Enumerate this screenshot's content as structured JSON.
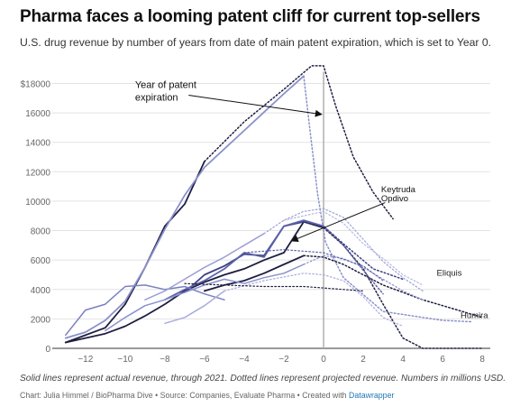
{
  "title": "Pharma faces a looming patent cliff for current top-sellers",
  "subtitle": "U.S. drug revenue by number of years from date of main patent expiration, which is set to Year 0.",
  "footer": {
    "note": "Solid lines represent actual revenue, through 2021. Dotted lines represent projected revenue. Numbers in millions USD.",
    "credit": "Chart: Julia Himmel / BioPharma Dive • Source: Companies, Evaluate Pharma • Created with ",
    "credit_link": "Datawrapper"
  },
  "chart_data": {
    "type": "line",
    "title": "Pharma faces a looming patent cliff for current top-sellers",
    "xlabel": "",
    "ylabel": "",
    "xlim": [
      -13.4,
      8.4
    ],
    "ylim": [
      0,
      19500
    ],
    "x_ticks": [
      -12,
      -10,
      -8,
      -6,
      -4,
      -2,
      0,
      2,
      4,
      6,
      8
    ],
    "x_tick_labels": [
      "−12",
      "−10",
      "−8",
      "−6",
      "−4",
      "−2",
      "0",
      "2",
      "4",
      "6",
      "8"
    ],
    "y_ticks": [
      0,
      2000,
      4000,
      6000,
      8000,
      10000,
      12000,
      14000,
      16000,
      18000
    ],
    "y_tick_labels": [
      "0",
      "2000",
      "4000",
      "6000",
      "8000",
      "10000",
      "12000",
      "14000",
      "16000",
      "$18000"
    ],
    "grid": true,
    "legend": "none",
    "expiration_line": {
      "x": 0,
      "color": "#b5b5b5"
    },
    "annotations": [
      {
        "text": "Year of patent expiration",
        "lines": [
          "Year of patent",
          "expiration"
        ],
        "text_at": [
          -9.5,
          17700
        ],
        "arrow_from": [
          -6.8,
          17200
        ],
        "arrow_to": [
          -0.1,
          15900
        ]
      },
      {
        "text": "Keytruda",
        "lines": [
          "Keytruda"
        ],
        "text_at": [
          2.9,
          10600
        ],
        "arrow_from": null,
        "arrow_to": null
      },
      {
        "text": "Opdivo",
        "lines": [
          "Opdivo"
        ],
        "text_at": [
          2.9,
          10000
        ],
        "arrow_from": [
          3.1,
          9900
        ],
        "arrow_to": [
          -1.6,
          7300
        ]
      }
    ],
    "series": [
      {
        "color": "#1e1e40",
        "width": 1.5,
        "actual": [
          [
            -13,
            400
          ],
          [
            -11,
            1400
          ],
          [
            -10,
            3000
          ],
          [
            -9,
            5500
          ],
          [
            -8,
            8300
          ],
          [
            -7,
            9800
          ],
          [
            -6,
            12700
          ]
        ],
        "projected": [
          [
            -6,
            12700
          ],
          [
            -4,
            15400
          ],
          [
            -2,
            17600
          ],
          [
            -0.6,
            19200
          ],
          [
            0,
            19200
          ],
          [
            0.6,
            16500
          ],
          [
            1.5,
            13000
          ],
          [
            2.5,
            10600
          ],
          [
            3.5,
            8800
          ]
        ]
      },
      {
        "color": "#8a90cc",
        "width": 1.5,
        "actual": [
          [
            -13,
            700
          ],
          [
            -12,
            1100
          ],
          [
            -11,
            1900
          ],
          [
            -10,
            3200
          ],
          [
            -9,
            5500
          ],
          [
            -8,
            8100
          ],
          [
            -7,
            10400
          ],
          [
            -6,
            12300
          ],
          [
            -4,
            14800
          ],
          [
            -2,
            17300
          ],
          [
            -1,
            18500
          ]
        ],
        "projected": [
          [
            -1,
            18500
          ],
          [
            -0.7,
            15000
          ],
          [
            -0.3,
            10500
          ],
          [
            0.1,
            7200
          ],
          [
            1,
            4800
          ],
          [
            3,
            2500
          ],
          [
            6,
            1900
          ],
          [
            7.5,
            1800
          ]
        ]
      },
      {
        "color": "#1e1e40",
        "width": 1.5,
        "actual": [
          [
            -13,
            400
          ],
          [
            -12,
            700
          ],
          [
            -11,
            1000
          ],
          [
            -10,
            1500
          ],
          [
            -9,
            2200
          ],
          [
            -8,
            3000
          ],
          [
            -7,
            3900
          ],
          [
            -6,
            4500
          ],
          [
            -5,
            5000
          ],
          [
            -4,
            5400
          ],
          [
            -3,
            6000
          ],
          [
            -2,
            6500
          ],
          [
            -1,
            8600
          ],
          [
            0,
            8200
          ]
        ],
        "projected": [
          [
            0,
            8200
          ],
          [
            1,
            7000
          ],
          [
            2,
            5400
          ],
          [
            3,
            3000
          ],
          [
            4,
            700
          ],
          [
            5,
            0
          ],
          [
            8,
            0
          ]
        ]
      },
      {
        "color": "#3c3f86",
        "width": 1.5,
        "actual": [
          [
            -7,
            3800
          ],
          [
            -6,
            5000
          ],
          [
            -5,
            5600
          ],
          [
            -4,
            6400
          ],
          [
            -3,
            6300
          ],
          [
            -2,
            8300
          ],
          [
            -1,
            8600
          ]
        ],
        "projected": [
          [
            -1,
            8600
          ],
          [
            0,
            8300
          ],
          [
            1,
            7100
          ],
          [
            2.5,
            5400
          ],
          [
            4,
            4700
          ]
        ]
      },
      {
        "color": "#1e1e40",
        "width": 1.5,
        "actual": [
          [
            -6,
            3900
          ],
          [
            -5,
            4300
          ],
          [
            -4,
            4600
          ],
          [
            -3,
            5100
          ],
          [
            -2,
            5700
          ],
          [
            -1,
            6300
          ]
        ],
        "projected": [
          [
            -1,
            6300
          ],
          [
            0,
            6200
          ],
          [
            1,
            5700
          ],
          [
            2,
            5000
          ],
          [
            3,
            4300
          ],
          [
            4,
            3800
          ],
          [
            5,
            3300
          ],
          [
            6,
            2900
          ],
          [
            7,
            2500
          ],
          [
            8,
            2100
          ]
        ]
      },
      {
        "color": "#5c63a8",
        "width": 1.5,
        "actual": [
          [
            -8,
            3300
          ],
          [
            -7,
            4000
          ],
          [
            -6,
            4600
          ],
          [
            -5,
            5400
          ],
          [
            -4,
            6500
          ],
          [
            -3,
            6200
          ],
          [
            -2,
            8300
          ],
          [
            -1,
            8700
          ],
          [
            0,
            8300
          ]
        ],
        "projected": [
          [
            0,
            8300
          ],
          [
            1,
            7000
          ],
          [
            2,
            5300
          ],
          [
            3,
            3700
          ]
        ]
      },
      {
        "color": "#7a80c0",
        "width": 1.2,
        "actual": [
          [
            -13,
            900
          ],
          [
            -12,
            2600
          ],
          [
            -11,
            3000
          ],
          [
            -10,
            4200
          ],
          [
            -9,
            4300
          ],
          [
            -8,
            4000
          ],
          [
            -7,
            4200
          ],
          [
            -6,
            3700
          ],
          [
            -5,
            3300
          ]
        ],
        "projected": []
      },
      {
        "color": "#8a90cc",
        "width": 1.2,
        "actual": [
          [
            -11,
            1200
          ],
          [
            -10,
            2100
          ],
          [
            -9,
            2900
          ],
          [
            -8,
            3300
          ],
          [
            -7,
            3800
          ],
          [
            -6,
            4300
          ],
          [
            -5,
            4700
          ],
          [
            -4,
            4400
          ],
          [
            -3,
            4800
          ],
          [
            -2,
            5100
          ],
          [
            -1,
            5700
          ]
        ],
        "projected": [
          [
            -1,
            5700
          ],
          [
            0,
            6300
          ],
          [
            1,
            6100
          ],
          [
            2,
            5500
          ],
          [
            3,
            4700
          ],
          [
            4,
            3900
          ],
          [
            5,
            3300
          ]
        ]
      },
      {
        "color": "#a8acdc",
        "width": 1.2,
        "actual": [
          [
            -8,
            1700
          ],
          [
            -7,
            2100
          ],
          [
            -6,
            2900
          ],
          [
            -5,
            3900
          ]
        ],
        "projected": [
          [
            -5,
            3900
          ],
          [
            -3,
            4600
          ],
          [
            -1,
            5100
          ],
          [
            0,
            5000
          ],
          [
            1,
            4600
          ],
          [
            2,
            3500
          ],
          [
            3,
            2100
          ],
          [
            4,
            1500
          ]
        ]
      },
      {
        "color": "#9ba0d4",
        "width": 1.2,
        "actual": [
          [
            -9,
            3300
          ],
          [
            -8,
            3900
          ],
          [
            -7,
            4700
          ],
          [
            -6,
            5500
          ],
          [
            -5,
            6200
          ],
          [
            -4,
            7000
          ],
          [
            -3,
            7800
          ]
        ],
        "projected": [
          [
            -3,
            7800
          ],
          [
            -2,
            8700
          ],
          [
            -1,
            9300
          ],
          [
            0,
            9500
          ],
          [
            1,
            8900
          ],
          [
            2,
            7400
          ],
          [
            3,
            5900
          ],
          [
            4,
            4800
          ],
          [
            5,
            3900
          ]
        ]
      },
      {
        "color": "#b4b8e0",
        "width": 1.2,
        "actual": [],
        "projected": [
          [
            -2,
            8700
          ],
          [
            0,
            9300
          ],
          [
            1,
            8500
          ],
          [
            2,
            7100
          ],
          [
            3,
            6100
          ],
          [
            4,
            5000
          ],
          [
            5,
            4300
          ]
        ]
      },
      {
        "color": "#1e1e40",
        "width": 1.2,
        "actual": [],
        "projected": [
          [
            -7,
            4400
          ],
          [
            -5,
            4300
          ],
          [
            -3,
            4200
          ],
          [
            -1,
            4200
          ],
          [
            0,
            4100
          ],
          [
            1,
            4000
          ],
          [
            2,
            3900
          ]
        ]
      },
      {
        "color": "#5c63a8",
        "width": 1.2,
        "actual": [],
        "projected": [
          [
            -4,
            6500
          ],
          [
            -2,
            6700
          ],
          [
            0,
            6500
          ],
          [
            2,
            5600
          ],
          [
            3,
            4600
          ]
        ]
      }
    ],
    "series_labels": [
      {
        "text": "Eliquis",
        "at": [
          5.7,
          4950
        ]
      },
      {
        "text": "Humira",
        "at": [
          6.9,
          2050
        ]
      }
    ]
  }
}
